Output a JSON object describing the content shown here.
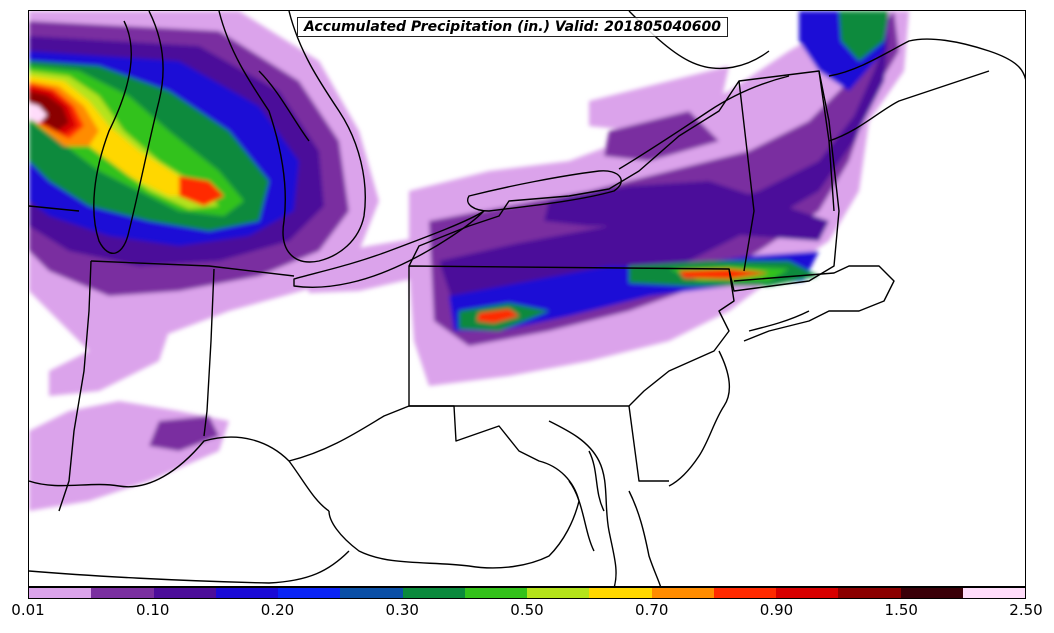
{
  "title": "Accumulated Precipitation (in.) Valid: 201805040600",
  "colorbar": {
    "colors": [
      "#dba3eb",
      "#7a2fa0",
      "#4c0d9a",
      "#1a0ad6",
      "#0a24f5",
      "#0a4fa6",
      "#0a8a3c",
      "#33c21a",
      "#b4e31a",
      "#ffd700",
      "#ff8c00",
      "#ff2a00",
      "#d70000",
      "#8b0000",
      "#3a0008",
      "#ffdcfa"
    ],
    "tick_labels": [
      "0.01",
      "0.10",
      "0.20",
      "0.30",
      "0.50",
      "0.70",
      "0.90",
      "1.50",
      "2.50"
    ]
  }
}
